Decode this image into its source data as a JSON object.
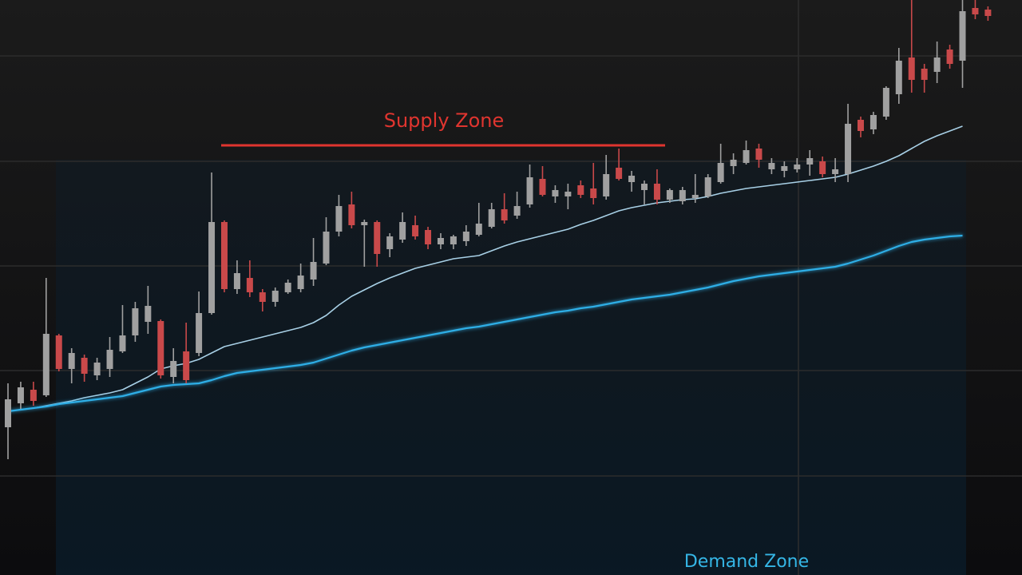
{
  "chart_data": {
    "type": "candlestick",
    "categories": [
      null,
      null,
      null,
      null,
      null,
      null,
      null,
      null,
      null,
      null,
      null,
      null,
      null,
      null,
      null,
      null,
      null,
      null,
      null,
      null,
      null,
      null,
      null,
      null,
      null,
      null,
      null,
      null,
      null,
      null,
      null,
      null,
      null,
      null,
      null,
      null,
      null,
      null,
      null,
      null,
      null,
      null,
      null,
      null,
      null,
      null,
      null,
      null,
      null,
      null,
      null,
      null,
      null,
      null,
      null,
      null,
      null,
      null,
      null,
      null,
      null,
      null,
      null,
      null,
      null,
      null,
      null,
      null,
      null,
      null,
      null,
      null,
      null,
      null,
      null,
      null,
      null,
      null
    ],
    "open": [
      185,
      215,
      232,
      225,
      300,
      258,
      272,
      250,
      258,
      280,
      300,
      317,
      318,
      248,
      280,
      278,
      328,
      442,
      358,
      372,
      354,
      342,
      354,
      358,
      370,
      390,
      430,
      464,
      438,
      442,
      408,
      420,
      438,
      432,
      414,
      414,
      418,
      426,
      436,
      458,
      450,
      464,
      496,
      474,
      474,
      488,
      484,
      474,
      510,
      492,
      482,
      490,
      470,
      468,
      472,
      474,
      492,
      512,
      516,
      534,
      508,
      506,
      508,
      514,
      518,
      502,
      502,
      570,
      558,
      574,
      602,
      648,
      634,
      630,
      658,
      644,
      710,
      708
    ],
    "close": [
      220,
      235,
      218,
      302,
      258,
      278,
      252,
      266,
      282,
      300,
      334,
      337,
      250,
      268,
      244,
      328,
      442,
      358,
      378,
      354,
      342,
      356,
      366,
      375,
      392,
      430,
      462,
      438,
      442,
      402,
      424,
      442,
      424,
      414,
      422,
      424,
      430,
      440,
      458,
      444,
      462,
      498,
      476,
      482,
      480,
      476,
      472,
      502,
      496,
      500,
      490,
      470,
      482,
      482,
      476,
      498,
      516,
      520,
      532,
      520,
      516,
      512,
      514,
      522,
      502,
      508,
      565,
      556,
      576,
      610,
      644,
      620,
      620,
      648,
      640,
      706,
      702,
      700
    ],
    "high": [
      240,
      242,
      242,
      372,
      302,
      284,
      276,
      272,
      298,
      338,
      342,
      362,
      320,
      284,
      316,
      355,
      504,
      444,
      394,
      394,
      358,
      360,
      370,
      390,
      422,
      448,
      476,
      480,
      445,
      444,
      428,
      454,
      450,
      436,
      428,
      426,
      438,
      466,
      466,
      478,
      480,
      514,
      512,
      488,
      490,
      494,
      516,
      526,
      534,
      506,
      494,
      508,
      484,
      486,
      502,
      502,
      540,
      528,
      544,
      540,
      522,
      518,
      522,
      532,
      524,
      522,
      590,
      574,
      580,
      612,
      660,
      720,
      640,
      668,
      664,
      720,
      720,
      712
    ],
    "low": [
      145,
      208,
      212,
      223,
      255,
      240,
      242,
      244,
      248,
      278,
      292,
      302,
      246,
      240,
      240,
      274,
      326,
      354,
      352,
      348,
      330,
      336,
      352,
      354,
      362,
      388,
      424,
      434,
      386,
      386,
      398,
      416,
      420,
      408,
      408,
      408,
      412,
      424,
      434,
      440,
      446,
      460,
      474,
      466,
      458,
      472,
      464,
      470,
      494,
      480,
      464,
      464,
      466,
      464,
      466,
      472,
      490,
      502,
      514,
      510,
      502,
      498,
      504,
      500,
      498,
      492,
      492,
      548,
      552,
      570,
      590,
      604,
      604,
      616,
      634,
      610,
      696,
      694
    ],
    "up_color": "#a0a0a0",
    "down_color": "#c9494a",
    "series": [
      {
        "color": "#a8d0e6",
        "values": [
          205,
          207,
          209,
          212,
          215,
          218,
          222,
          225,
          228,
          232,
          240,
          248,
          258,
          262,
          265,
          270,
          278,
          286,
          290,
          294,
          298,
          302,
          306,
          310,
          316,
          325,
          338,
          349,
          357,
          365,
          372,
          378,
          384,
          388,
          392,
          396,
          398,
          400,
          406,
          412,
          417,
          421,
          425,
          429,
          433,
          439,
          444,
          450,
          456,
          460,
          463,
          466,
          468,
          470,
          471,
          474,
          478,
          481,
          484,
          486,
          488,
          490,
          492,
          494,
          496,
          498,
          502,
          507,
          512,
          518,
          525,
          534,
          543,
          550,
          556,
          562,
          null,
          null
        ]
      },
      {
        "color": "#2eaee6",
        "values": [
          205,
          207,
          209,
          211,
          214,
          216,
          218,
          220,
          222,
          224,
          228,
          232,
          236,
          238,
          239,
          240,
          244,
          249,
          253,
          255,
          257,
          259,
          261,
          263,
          266,
          271,
          276,
          281,
          285,
          288,
          291,
          294,
          297,
          300,
          303,
          306,
          309,
          311,
          314,
          317,
          320,
          323,
          326,
          329,
          331,
          334,
          336,
          339,
          342,
          345,
          347,
          349,
          351,
          354,
          357,
          360,
          364,
          368,
          371,
          374,
          376,
          378,
          380,
          382,
          384,
          386,
          390,
          395,
          400,
          406,
          412,
          417,
          420,
          422,
          424,
          425,
          null,
          null
        ]
      }
    ],
    "ylim": [
      0,
      720
    ],
    "ygrid": [
      650,
      518,
      387,
      256,
      124
    ],
    "grid": true,
    "annotations": [
      {
        "text": "Supply Zone",
        "color": "#e0352f",
        "level": 538
      },
      {
        "text": "Demand Zone",
        "color": "#35b6e6"
      }
    ]
  }
}
